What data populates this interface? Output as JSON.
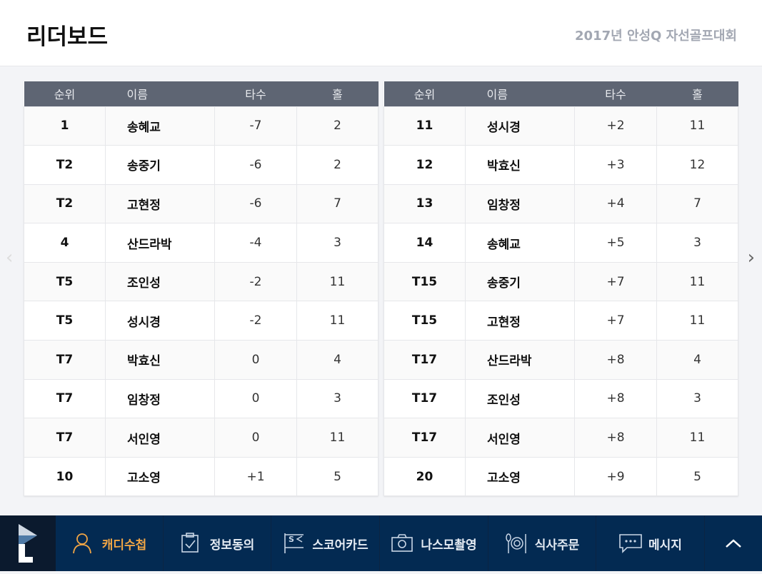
{
  "header": {
    "title": "리더보드",
    "subtitle": "2017년 안성Q 자선골프대회"
  },
  "columns": [
    "순위",
    "이름",
    "타수",
    "홀"
  ],
  "left": [
    {
      "rank": "1",
      "name": "송혜교",
      "score": "-7",
      "hole": "2"
    },
    {
      "rank": "T2",
      "name": "송중기",
      "score": "-6",
      "hole": "2"
    },
    {
      "rank": "T2",
      "name": "고현정",
      "score": "-6",
      "hole": "7"
    },
    {
      "rank": "4",
      "name": "산드라박",
      "score": "-4",
      "hole": "3"
    },
    {
      "rank": "T5",
      "name": "조인성",
      "score": "-2",
      "hole": "11"
    },
    {
      "rank": "T5",
      "name": "성시경",
      "score": "-2",
      "hole": "11"
    },
    {
      "rank": "T7",
      "name": "박효신",
      "score": "0",
      "hole": "4"
    },
    {
      "rank": "T7",
      "name": "임창정",
      "score": "0",
      "hole": "3"
    },
    {
      "rank": "T7",
      "name": "서인영",
      "score": "0",
      "hole": "11"
    },
    {
      "rank": "10",
      "name": "고소영",
      "score": "+1",
      "hole": "5"
    }
  ],
  "right": [
    {
      "rank": "11",
      "name": "성시경",
      "score": "+2",
      "hole": "11"
    },
    {
      "rank": "12",
      "name": "박효신",
      "score": "+3",
      "hole": "12"
    },
    {
      "rank": "13",
      "name": "임창정",
      "score": "+4",
      "hole": "7"
    },
    {
      "rank": "14",
      "name": "송혜교",
      "score": "+5",
      "hole": "3"
    },
    {
      "rank": "T15",
      "name": "송중기",
      "score": "+7",
      "hole": "11"
    },
    {
      "rank": "T15",
      "name": "고현정",
      "score": "+7",
      "hole": "11"
    },
    {
      "rank": "T17",
      "name": "산드라박",
      "score": "+8",
      "hole": "4"
    },
    {
      "rank": "T17",
      "name": "조인성",
      "score": "+8",
      "hole": "3"
    },
    {
      "rank": "T17",
      "name": "서인영",
      "score": "+8",
      "hole": "11"
    },
    {
      "rank": "20",
      "name": "고소영",
      "score": "+9",
      "hole": "5"
    }
  ],
  "nav": {
    "items": [
      {
        "label": "캐디수첩",
        "icon": "person-icon",
        "active": true
      },
      {
        "label": "정보동의",
        "icon": "clipboard-check-icon"
      },
      {
        "label": "스코어카드",
        "icon": "flag-icon"
      },
      {
        "label": "나스모촬영",
        "icon": "camera-icon"
      },
      {
        "label": "식사주문",
        "icon": "plate-icon"
      },
      {
        "label": "메시지",
        "icon": "message-icon"
      }
    ]
  },
  "colors": {
    "nav_bg": "#032a52",
    "active": "#f0a545",
    "table_header": "#5e6573"
  }
}
